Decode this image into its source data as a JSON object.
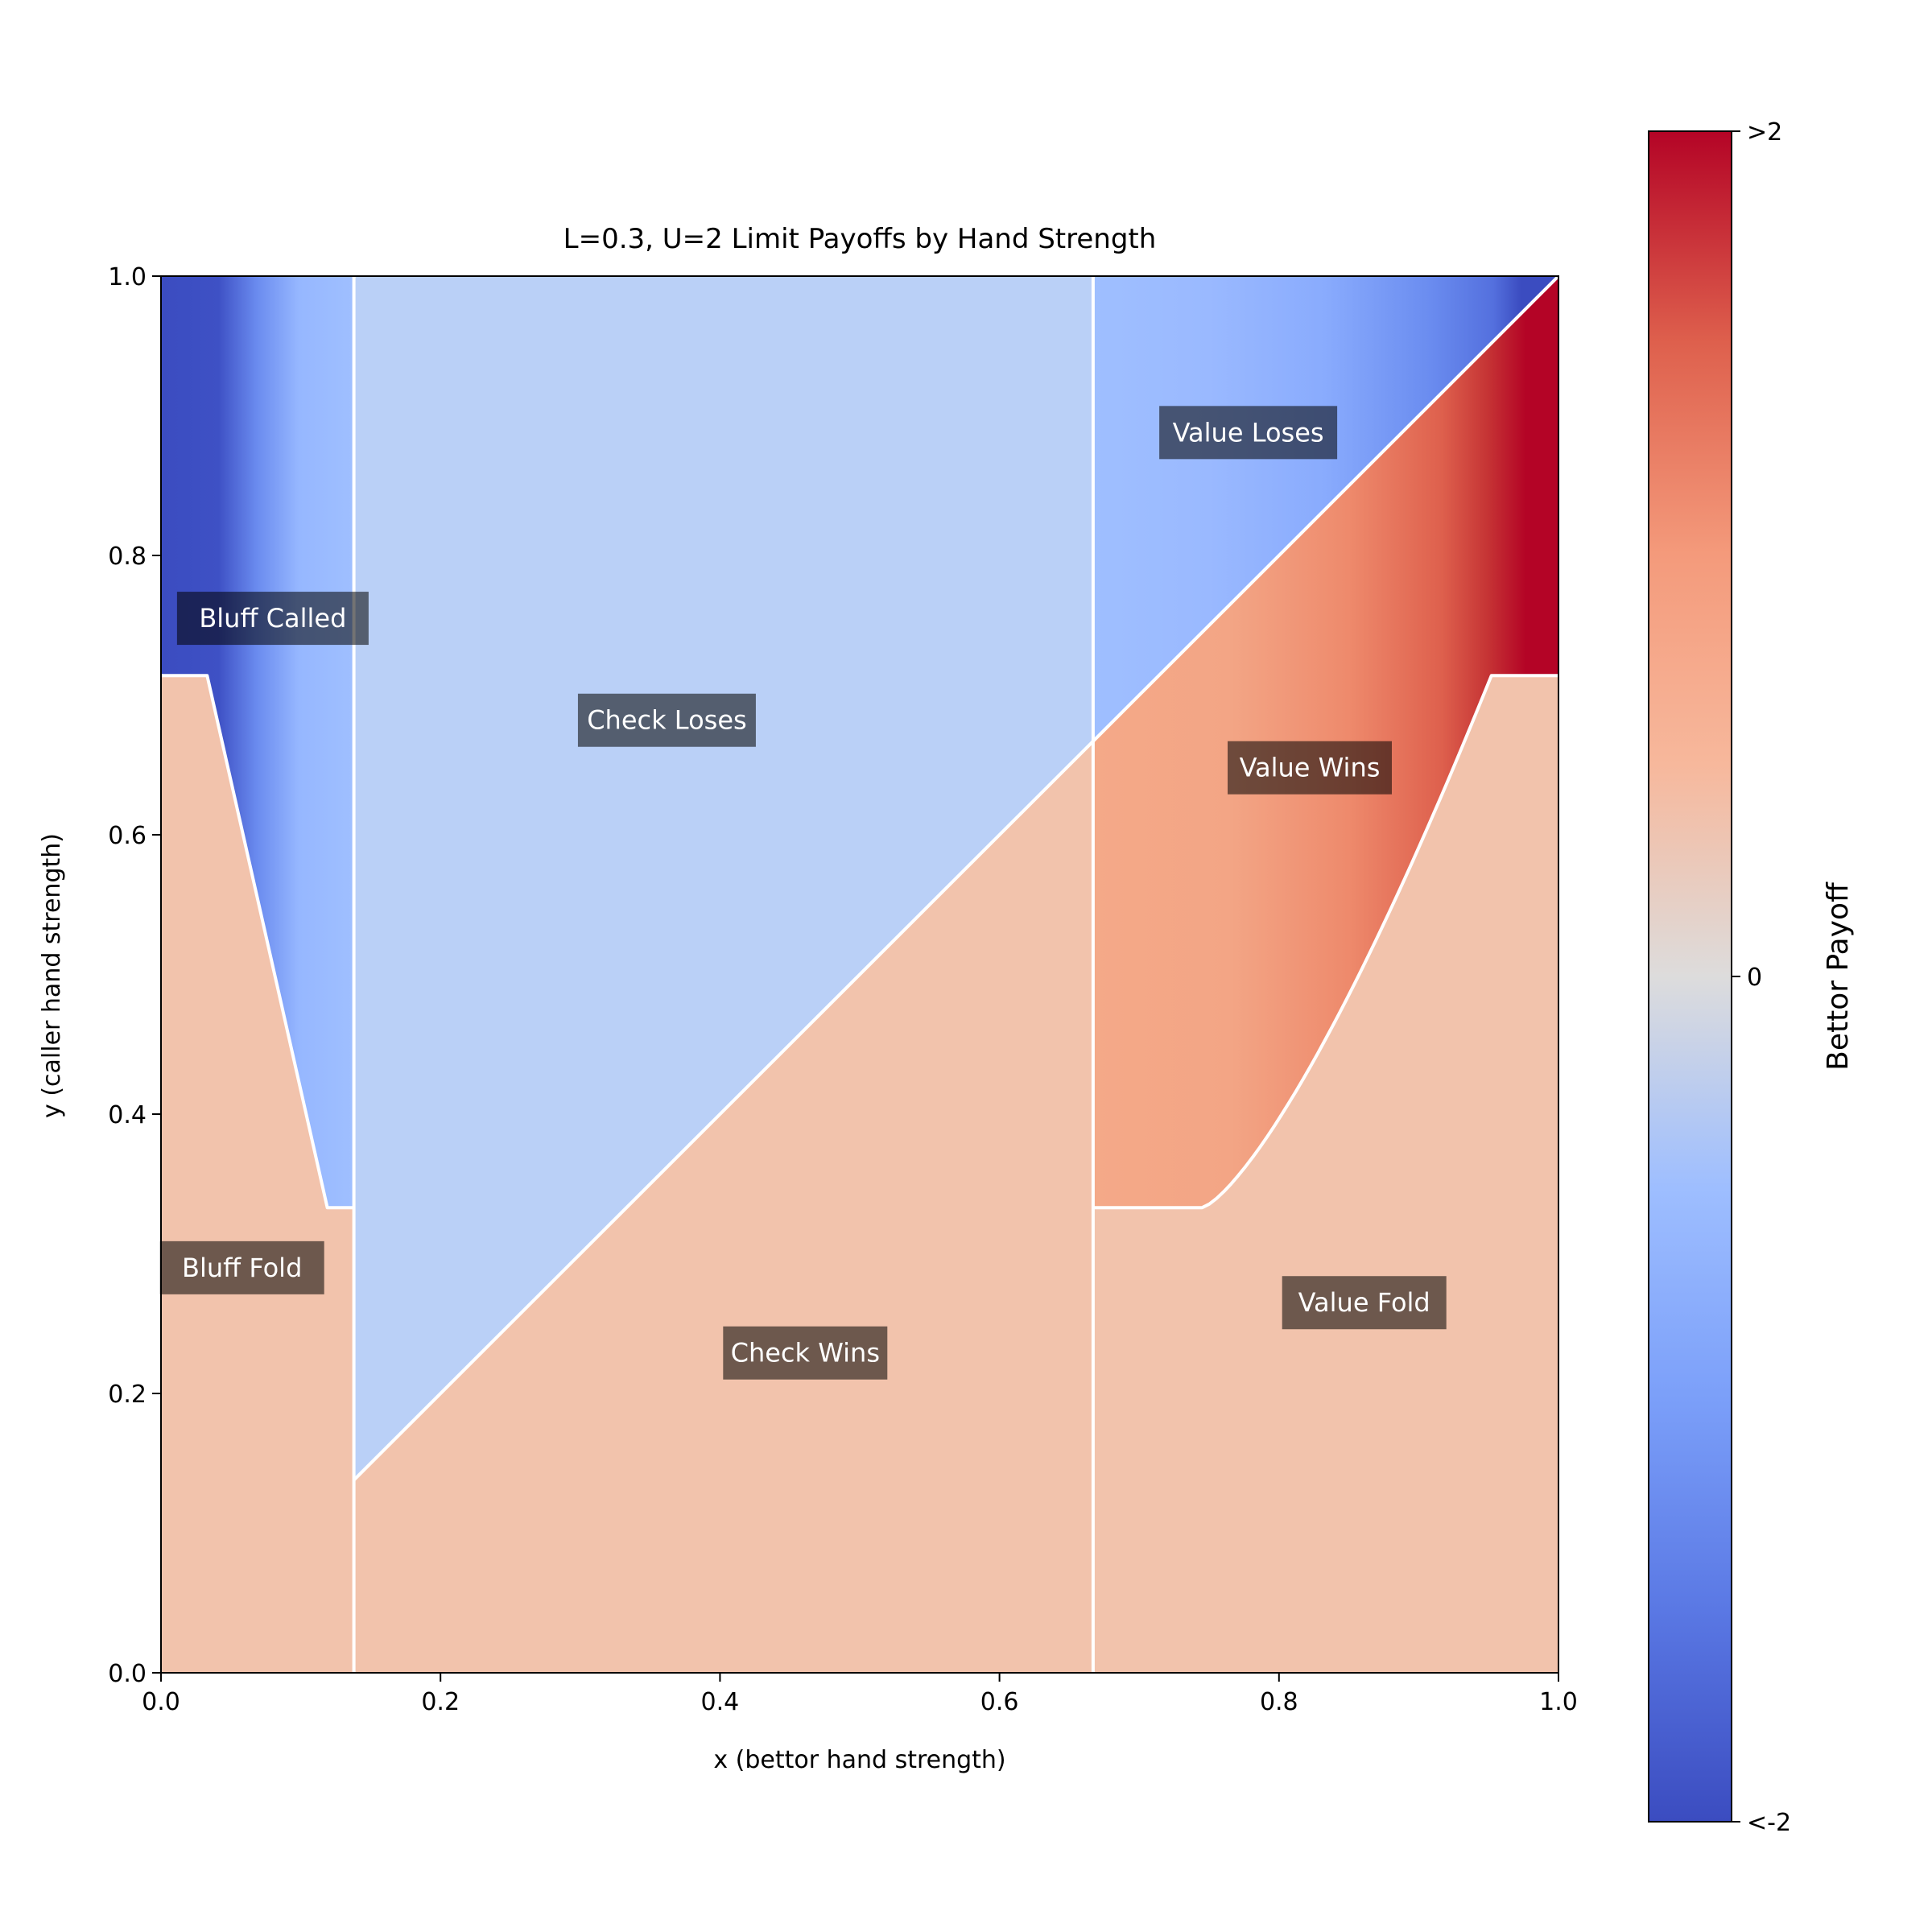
{
  "chart_data": {
    "type": "heatmap",
    "title": "L=0.3, U=2 Limit Payoffs by Hand Strength",
    "xlabel": "x (bettor hand strength)",
    "ylabel": "y (caller hand strength)",
    "xlim": [
      0,
      1
    ],
    "ylim": [
      0,
      1
    ],
    "x_ticks": [
      "0.0",
      "0.2",
      "0.4",
      "0.6",
      "0.8",
      "1.0"
    ],
    "y_ticks": [
      "0.0",
      "0.2",
      "0.4",
      "0.6",
      "0.8",
      "1.0"
    ],
    "colorbar": {
      "label": "Bettor Payoff",
      "colormap": "coolwarm",
      "ticks": [
        ">2",
        "0",
        "<-2"
      ],
      "range": [
        -2,
        2
      ]
    },
    "boundaries": {
      "bluff_upper_x": 0.138,
      "value_lower_x": 0.667,
      "bluff_call_threshold_top": 0.714,
      "bluff_call_threshold_bottom": 0.333,
      "bluff_curve_x_top": 0.033,
      "bluff_curve_x_bottom": 0.119,
      "value_curve_x_bottom": 0.745,
      "value_curve_x_top": 0.952
    },
    "regions": [
      {
        "label": "Bluff Called",
        "x": 0.08,
        "y": 0.755
      },
      {
        "label": "Bluff Fold",
        "x": 0.058,
        "y": 0.29
      },
      {
        "label": "Check Loses",
        "x": 0.362,
        "y": 0.682
      },
      {
        "label": "Check Wins",
        "x": 0.461,
        "y": 0.229
      },
      {
        "label": "Value Loses",
        "x": 0.778,
        "y": 0.888
      },
      {
        "label": "Value Wins",
        "x": 0.822,
        "y": 0.648
      },
      {
        "label": "Value Fold",
        "x": 0.861,
        "y": 0.265
      }
    ],
    "colors": {
      "fold_region": "#f2c3ac",
      "check_loses": "#bad0f7",
      "max_red": "#b40426",
      "min_blue": "#3b4cc0"
    }
  }
}
